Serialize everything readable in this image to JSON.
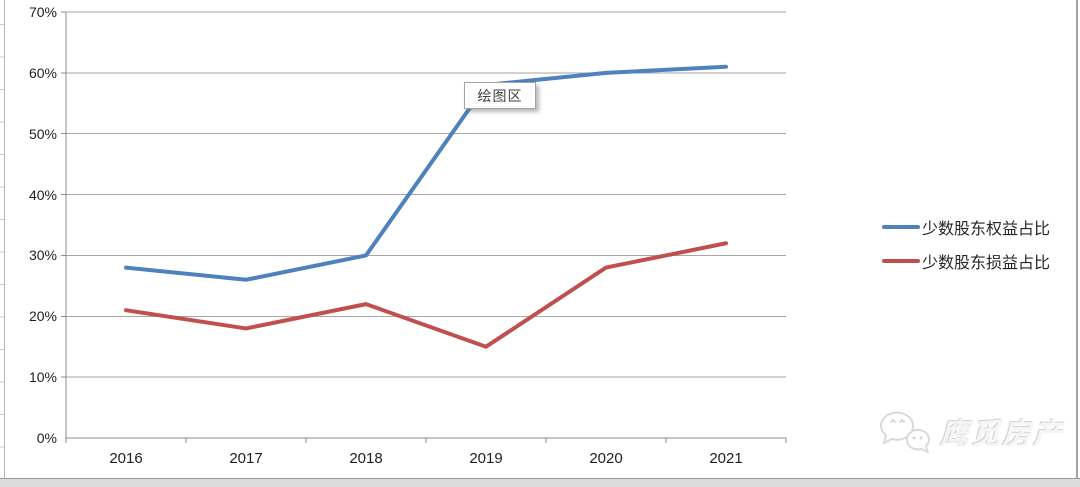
{
  "chart_data": {
    "type": "line",
    "title": "",
    "unit": "%",
    "categories": [
      "2016",
      "2017",
      "2018",
      "2019",
      "2020",
      "2021"
    ],
    "series": [
      {
        "name": "少数股东权益占比",
        "color": "#4F81BD",
        "values": [
          28,
          26,
          30,
          58,
          60,
          61
        ]
      },
      {
        "name": "少数股东损益占比",
        "color": "#C0504D",
        "values": [
          21,
          18,
          22,
          15,
          28,
          32
        ]
      }
    ],
    "xlabel": "",
    "ylabel": "",
    "ylim": [
      0,
      70
    ],
    "y_tick_step": 10,
    "y_tick_labels": [
      "0%",
      "10%",
      "20%",
      "30%",
      "40%",
      "50%",
      "60%",
      "70%"
    ],
    "grid": true,
    "legend_position": "right"
  },
  "tooltip": {
    "text": "绘图区"
  },
  "watermark": {
    "text": "鹰觅房产",
    "icon": "wechat-icon"
  },
  "colors": {
    "gridline": "#a6a6a6",
    "axis": "#8c8c8c",
    "tick_label": "#1f1f1f",
    "window_chrome": "#dcdcdc"
  }
}
